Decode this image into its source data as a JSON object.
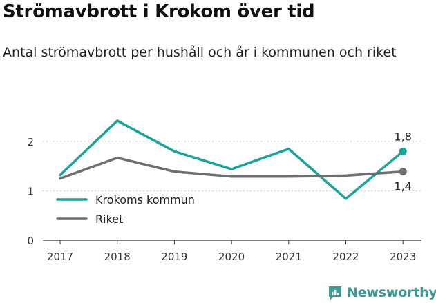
{
  "header": {
    "title": "Strömavbrott i Krokom över tid",
    "subtitle": "Antal strömavbrott per hushåll och år i kommunen och riket"
  },
  "brand": {
    "name": "Newsworthy",
    "icon": "newsworthy-logo-icon"
  },
  "colors": {
    "krokom": "#1aa39a",
    "riket": "#6e6e73",
    "grid": "#cccccc",
    "axis": "#333333"
  },
  "chart_data": {
    "type": "line",
    "x": [
      "2017",
      "2018",
      "2019",
      "2020",
      "2021",
      "2022",
      "2023"
    ],
    "series": [
      {
        "name": "Krokoms kommun",
        "values": [
          1.32,
          2.42,
          1.8,
          1.44,
          1.85,
          0.84,
          1.8
        ],
        "end_label": "1,8"
      },
      {
        "name": "Riket",
        "values": [
          1.25,
          1.67,
          1.39,
          1.29,
          1.29,
          1.31,
          1.39
        ],
        "end_label": "1,4"
      }
    ],
    "yticks": [
      "0",
      "1",
      "2"
    ],
    "ylim": [
      0,
      2.8
    ],
    "grid": true,
    "legend": "bottom-left"
  }
}
